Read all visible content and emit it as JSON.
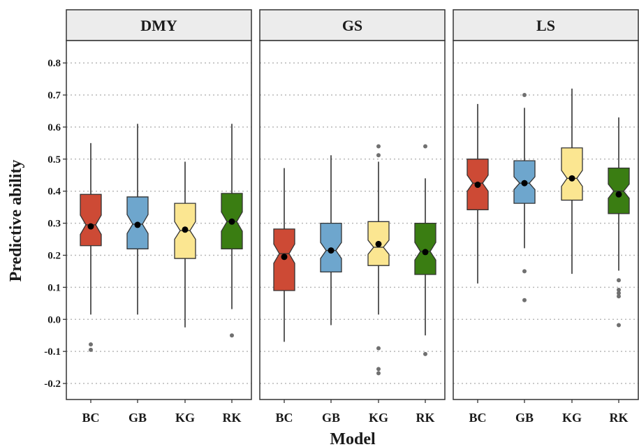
{
  "chart_data": {
    "type": "boxplot",
    "notched": true,
    "xlabel": "Model",
    "ylabel": "Predictive ability",
    "ylim": [
      -0.25,
      0.87
    ],
    "yticks": [
      "-0.2",
      "-0.1",
      "0.0",
      "0.1",
      "0.2",
      "0.3",
      "0.4",
      "0.5",
      "0.6",
      "0.7",
      "0.8"
    ],
    "grid": "horizontal dotted",
    "categories": [
      "BC",
      "GB",
      "KG",
      "RK"
    ],
    "colors": {
      "BC": "#cd4a35",
      "GB": "#6ea6cd",
      "KG": "#fbe691",
      "RK": "#3a7d12"
    },
    "panels": [
      {
        "name": "DMY",
        "boxes": [
          {
            "category": "BC",
            "q1": 0.23,
            "median": 0.295,
            "q3": 0.39,
            "notch_low": 0.265,
            "notch_high": 0.325,
            "mean": 0.29,
            "whisker_low": 0.015,
            "whisker_high": 0.55,
            "outliers": [
              -0.078,
              -0.095
            ]
          },
          {
            "category": "GB",
            "q1": 0.22,
            "median": 0.297,
            "q3": 0.382,
            "notch_low": 0.268,
            "notch_high": 0.327,
            "mean": 0.295,
            "whisker_low": 0.015,
            "whisker_high": 0.61,
            "outliers": []
          },
          {
            "category": "KG",
            "q1": 0.19,
            "median": 0.277,
            "q3": 0.362,
            "notch_low": 0.25,
            "notch_high": 0.305,
            "mean": 0.28,
            "whisker_low": -0.025,
            "whisker_high": 0.492,
            "outliers": []
          },
          {
            "category": "RK",
            "q1": 0.22,
            "median": 0.305,
            "q3": 0.393,
            "notch_low": 0.275,
            "notch_high": 0.335,
            "mean": 0.305,
            "whisker_low": 0.032,
            "whisker_high": 0.61,
            "outliers": [
              -0.05
            ]
          }
        ]
      },
      {
        "name": "GS",
        "boxes": [
          {
            "category": "BC",
            "q1": 0.09,
            "median": 0.205,
            "q3": 0.282,
            "notch_low": 0.175,
            "notch_high": 0.235,
            "mean": 0.195,
            "whisker_low": -0.07,
            "whisker_high": 0.472,
            "outliers": []
          },
          {
            "category": "GB",
            "q1": 0.148,
            "median": 0.215,
            "q3": 0.3,
            "notch_low": 0.19,
            "notch_high": 0.24,
            "mean": 0.215,
            "whisker_low": -0.018,
            "whisker_high": 0.512,
            "outliers": []
          },
          {
            "category": "KG",
            "q1": 0.168,
            "median": 0.225,
            "q3": 0.305,
            "notch_low": 0.203,
            "notch_high": 0.247,
            "mean": 0.235,
            "whisker_low": 0.015,
            "whisker_high": 0.492,
            "outliers": [
              0.54,
              0.512,
              -0.09,
              -0.155,
              -0.168
            ]
          },
          {
            "category": "RK",
            "q1": 0.14,
            "median": 0.212,
            "q3": 0.3,
            "notch_low": 0.185,
            "notch_high": 0.24,
            "mean": 0.21,
            "whisker_low": -0.05,
            "whisker_high": 0.44,
            "outliers": [
              0.54,
              -0.108
            ]
          }
        ]
      },
      {
        "name": "LS",
        "boxes": [
          {
            "category": "BC",
            "q1": 0.342,
            "median": 0.425,
            "q3": 0.5,
            "notch_low": 0.4,
            "notch_high": 0.45,
            "mean": 0.42,
            "whisker_low": 0.112,
            "whisker_high": 0.672,
            "outliers": []
          },
          {
            "category": "GB",
            "q1": 0.362,
            "median": 0.425,
            "q3": 0.495,
            "notch_low": 0.405,
            "notch_high": 0.445,
            "mean": 0.425,
            "whisker_low": 0.222,
            "whisker_high": 0.66,
            "outliers": [
              0.7,
              0.15,
              0.06
            ]
          },
          {
            "category": "KG",
            "q1": 0.372,
            "median": 0.44,
            "q3": 0.535,
            "notch_low": 0.415,
            "notch_high": 0.465,
            "mean": 0.44,
            "whisker_low": 0.142,
            "whisker_high": 0.72,
            "outliers": []
          },
          {
            "category": "RK",
            "q1": 0.33,
            "median": 0.4,
            "q3": 0.472,
            "notch_low": 0.378,
            "notch_high": 0.422,
            "mean": 0.39,
            "whisker_low": 0.152,
            "whisker_high": 0.63,
            "outliers": [
              0.122,
              0.092,
              0.082,
              0.072,
              -0.018
            ]
          }
        ]
      }
    ]
  }
}
